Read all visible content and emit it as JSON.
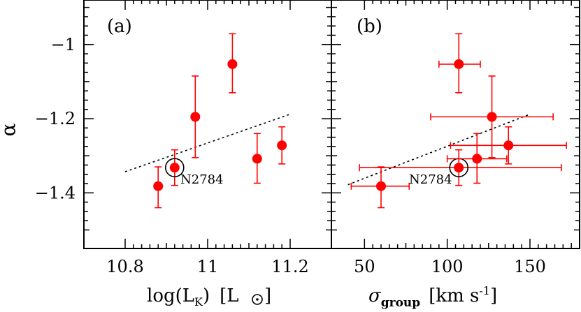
{
  "chart_data": [
    {
      "type": "scatter",
      "panel_label": "(a)",
      "xlabel_main": "log(L",
      "xlabel_sub": "K",
      "xlabel_close": ")",
      "xlabel_unit_open": "[L",
      "xlabel_unit_close": "]",
      "ylabel": "α",
      "xlim": [
        10.7,
        11.3
      ],
      "ylim": [
        -1.55,
        -0.88
      ],
      "xticks": [
        10.8,
        10.9,
        11.0,
        11.1,
        11.2
      ],
      "xticklabels": [
        "10.8",
        "",
        "11",
        "",
        "11.2"
      ],
      "yticks": [
        -1.5,
        -1.4,
        -1.3,
        -1.2,
        -1.1,
        -1.0,
        -0.9
      ],
      "yticklabels": [
        "",
        "-1.4",
        "",
        "-1.2",
        "",
        "-1",
        ""
      ],
      "points": [
        {
          "x": 10.88,
          "y": -1.382,
          "yerr_low": 0.058,
          "yerr_high": 0.052
        },
        {
          "x": 10.92,
          "y": -1.332,
          "yerr_low": 0.048,
          "yerr_high": 0.048
        },
        {
          "x": 10.97,
          "y": -1.195,
          "yerr_low": 0.11,
          "yerr_high": 0.11
        },
        {
          "x": 11.06,
          "y": -1.053,
          "yerr_low": 0.077,
          "yerr_high": 0.082
        },
        {
          "x": 11.12,
          "y": -1.308,
          "yerr_low": 0.066,
          "yerr_high": 0.068
        },
        {
          "x": 11.18,
          "y": -1.272,
          "yerr_low": 0.05,
          "yerr_high": 0.05
        }
      ],
      "highlight": {
        "index": 1,
        "label": "N2784"
      },
      "fit_line": {
        "x": [
          10.8,
          11.2
        ],
        "y": [
          -1.343,
          -1.188
        ]
      }
    },
    {
      "type": "scatter",
      "panel_label": "(b)",
      "xlabel_main": "σ",
      "xlabel_sub": "group",
      "xlabel_unit": "[km s",
      "xlabel_sup": "-1",
      "xlabel_unit_close": "]",
      "xlim": [
        30,
        180
      ],
      "ylim": [
        -1.55,
        -0.88
      ],
      "xticks": [
        50,
        75,
        100,
        125,
        150,
        175
      ],
      "xticklabels": [
        "50",
        "",
        "100",
        "",
        "150",
        ""
      ],
      "yticks": [
        -1.5,
        -1.4,
        -1.3,
        -1.2,
        -1.1,
        -1.0,
        -0.9
      ],
      "points": [
        {
          "x": 60,
          "y": -1.382,
          "yerr_low": 0.058,
          "yerr_high": 0.052,
          "xerr_low": 18,
          "xerr_high": 17
        },
        {
          "x": 107,
          "y": -1.332,
          "yerr_low": 0.048,
          "yerr_high": 0.048,
          "xerr_low": 60,
          "xerr_high": 62
        },
        {
          "x": 127,
          "y": -1.195,
          "yerr_low": 0.11,
          "yerr_high": 0.11,
          "xerr_low": 37,
          "xerr_high": 37
        },
        {
          "x": 107,
          "y": -1.053,
          "yerr_low": 0.077,
          "yerr_high": 0.082,
          "xerr_low": 12,
          "xerr_high": 13
        },
        {
          "x": 118,
          "y": -1.308,
          "yerr_low": 0.066,
          "yerr_high": 0.068,
          "xerr_low": 18,
          "xerr_high": 18
        },
        {
          "x": 137,
          "y": -1.272,
          "yerr_low": 0.05,
          "yerr_high": 0.05,
          "xerr_low": 35,
          "xerr_high": 35
        }
      ],
      "highlight": {
        "index": 1,
        "label": "N2784"
      },
      "fit_line": {
        "x": [
          40,
          150
        ],
        "y": [
          -1.378,
          -1.188
        ]
      }
    }
  ],
  "colors": {
    "points": "#ff0000",
    "axes": "#000000",
    "fit": "#000000"
  }
}
